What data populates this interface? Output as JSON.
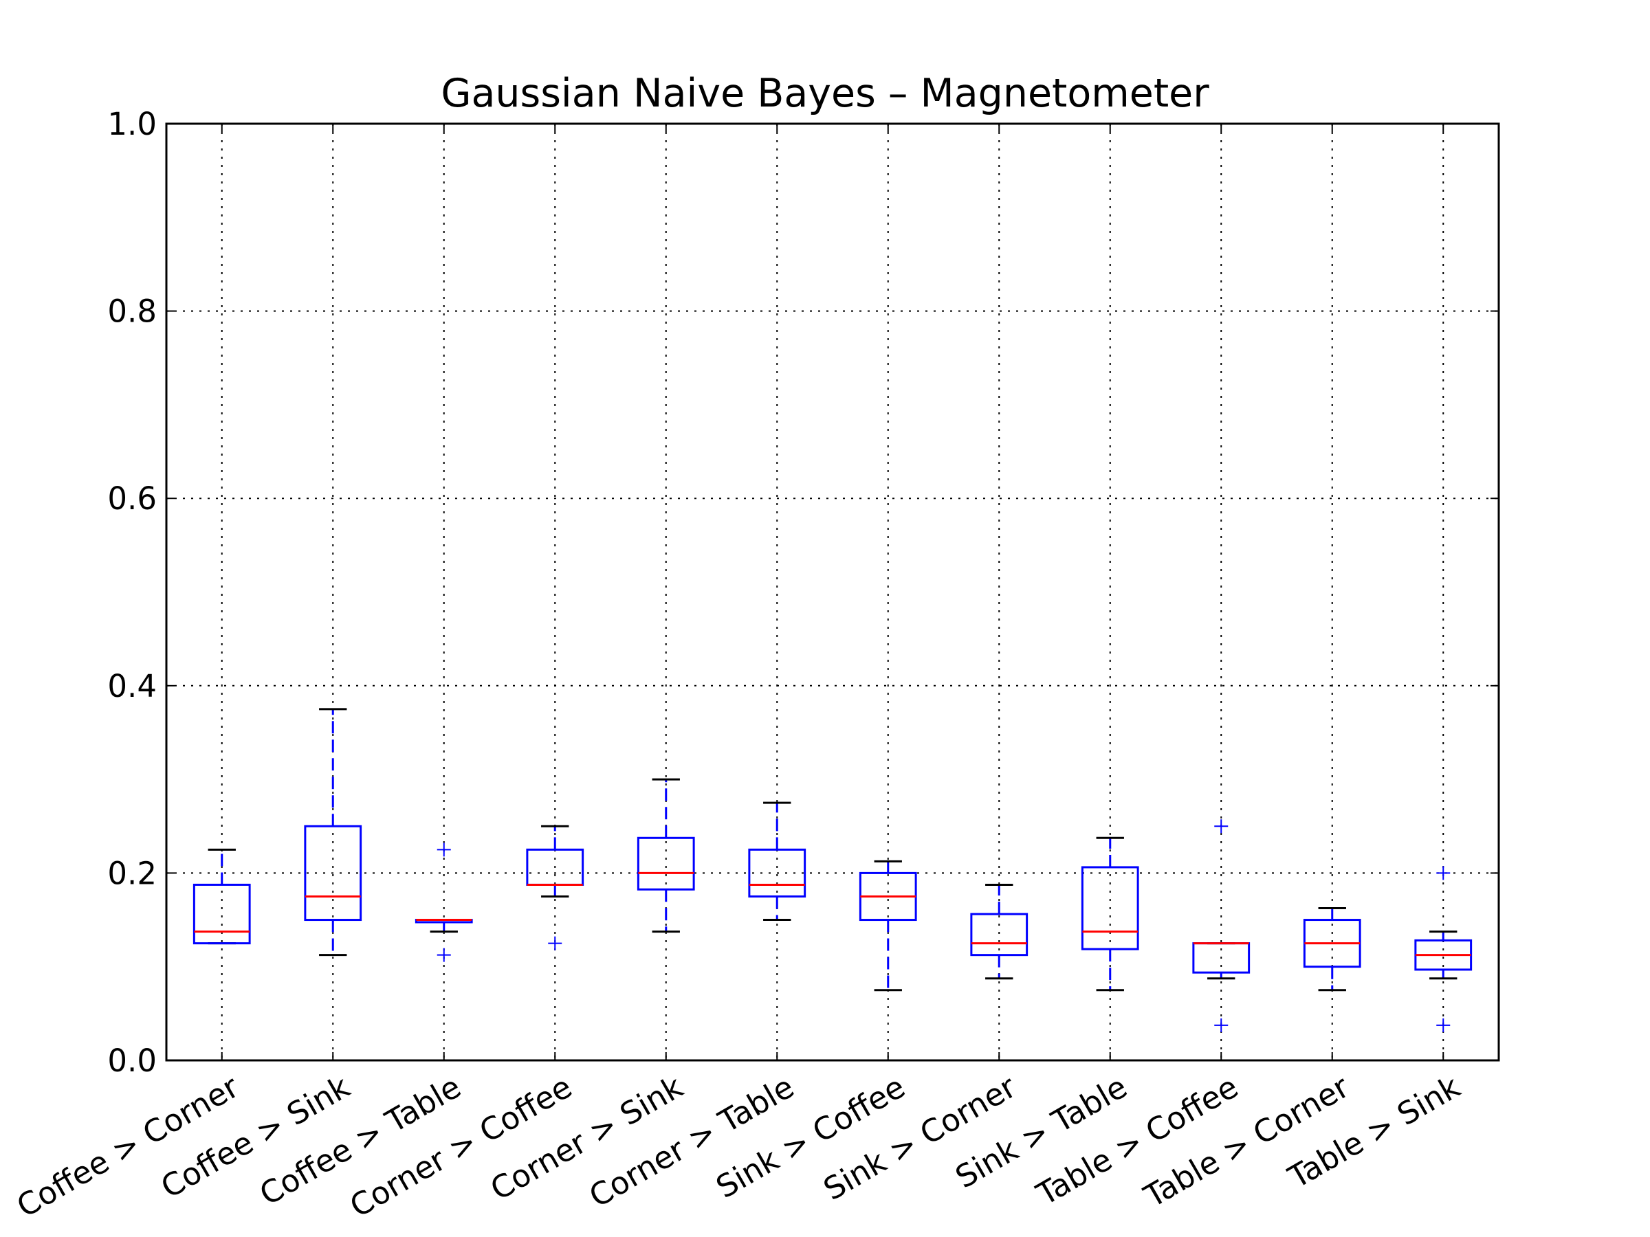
{
  "chart_data": {
    "type": "box",
    "title": "Gaussian Naive Bayes – Magnetometer",
    "xlabel": "",
    "ylabel": "",
    "ylim": [
      0.0,
      1.0
    ],
    "yticks": [
      "0.0",
      "0.2",
      "0.4",
      "0.6",
      "0.8",
      "1.0"
    ],
    "grid": true,
    "colors": {
      "box": "#0000ff",
      "whisker": "#0000ff",
      "cap": "#000000",
      "median": "#ff0000",
      "flier": "#0000ff"
    },
    "categories": [
      "Coffee > Corner",
      "Coffee > Sink",
      "Coffee > Table",
      "Corner > Coffee",
      "Corner > Sink",
      "Corner > Table",
      "Sink > Coffee",
      "Sink > Corner",
      "Sink > Table",
      "Table > Coffee",
      "Table > Corner",
      "Table > Sink"
    ],
    "boxes": [
      {
        "whislo": 0.125,
        "q1": 0.125,
        "med": 0.1375,
        "q3": 0.1875,
        "whishi": 0.225,
        "fliers": []
      },
      {
        "whislo": 0.1125,
        "q1": 0.15,
        "med": 0.175,
        "q3": 0.25,
        "whishi": 0.375,
        "fliers": []
      },
      {
        "whislo": 0.1375,
        "q1": 0.1475,
        "med": 0.15,
        "q3": 0.15,
        "whishi": 0.15,
        "fliers": [
          0.225,
          0.1125
        ]
      },
      {
        "whislo": 0.175,
        "q1": 0.1875,
        "med": 0.1875,
        "q3": 0.225,
        "whishi": 0.25,
        "fliers": [
          0.125
        ]
      },
      {
        "whislo": 0.1375,
        "q1": 0.1825,
        "med": 0.2,
        "q3": 0.2375,
        "whishi": 0.3,
        "fliers": []
      },
      {
        "whislo": 0.15,
        "q1": 0.175,
        "med": 0.1875,
        "q3": 0.225,
        "whishi": 0.275,
        "fliers": []
      },
      {
        "whislo": 0.075,
        "q1": 0.15,
        "med": 0.175,
        "q3": 0.2,
        "whishi": 0.2125,
        "fliers": []
      },
      {
        "whislo": 0.0875,
        "q1": 0.1125,
        "med": 0.125,
        "q3": 0.1562,
        "whishi": 0.1875,
        "fliers": []
      },
      {
        "whislo": 0.075,
        "q1": 0.1188,
        "med": 0.1375,
        "q3": 0.2062,
        "whishi": 0.2375,
        "fliers": []
      },
      {
        "whislo": 0.0875,
        "q1": 0.0938,
        "med": 0.125,
        "q3": 0.125,
        "whishi": 0.125,
        "fliers": [
          0.25,
          0.0375
        ]
      },
      {
        "whislo": 0.075,
        "q1": 0.1,
        "med": 0.125,
        "q3": 0.15,
        "whishi": 0.1625,
        "fliers": []
      },
      {
        "whislo": 0.0875,
        "q1": 0.0969,
        "med": 0.1125,
        "q3": 0.1281,
        "whishi": 0.1375,
        "fliers": [
          0.2,
          0.0375
        ]
      }
    ]
  }
}
